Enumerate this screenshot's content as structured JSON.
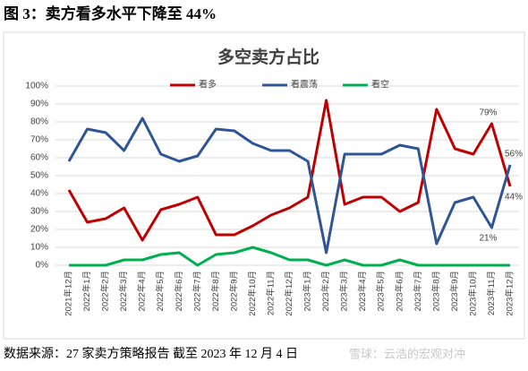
{
  "caption": "图 3：卖方看多水平下降至 44%",
  "source": "数据来源：27 家卖方策略报告 截至 2023 年 12 月 4 日",
  "watermark": "雪球：云浩的宏观对冲",
  "chart_data": {
    "type": "line",
    "title": "多空卖方占比",
    "categories": [
      "2021年12月",
      "2022年1月",
      "2022年2月",
      "2022年3月",
      "2022年4月",
      "2022年5月",
      "2022年6月",
      "2022年7月",
      "2022年8月",
      "2022年9月",
      "2022年10月",
      "2022年11月",
      "2022年12月",
      "2023年1月",
      "2023年2月",
      "2023年3月",
      "2023年4月",
      "2023年5月",
      "2023年6月",
      "2023年7月",
      "2023年8月",
      "2023年9月",
      "2023年10月",
      "2023年11月",
      "2023年12月"
    ],
    "series": [
      {
        "name": "看多",
        "color": "#c00000",
        "values": [
          42,
          24,
          26,
          32,
          14,
          31,
          34,
          38,
          17,
          17,
          22,
          28,
          32,
          38,
          92,
          34,
          38,
          38,
          30,
          35,
          87,
          65,
          62,
          79,
          44
        ],
        "value_labels": [
          null,
          null,
          null,
          null,
          null,
          null,
          null,
          null,
          null,
          null,
          null,
          null,
          null,
          null,
          null,
          null,
          null,
          null,
          null,
          null,
          null,
          null,
          null,
          "79%",
          "44%"
        ]
      },
      {
        "name": "看震荡",
        "color": "#2f5597",
        "values": [
          58,
          76,
          74,
          64,
          82,
          62,
          58,
          61,
          76,
          75,
          68,
          64,
          64,
          58,
          7,
          62,
          62,
          62,
          67,
          65,
          12,
          35,
          38,
          21,
          56
        ],
        "value_labels": [
          null,
          null,
          null,
          null,
          null,
          null,
          null,
          null,
          null,
          null,
          null,
          null,
          null,
          null,
          null,
          null,
          null,
          null,
          null,
          null,
          null,
          null,
          null,
          "21%",
          "56%"
        ]
      },
      {
        "name": "看空",
        "color": "#00b050",
        "values": [
          0,
          0,
          0,
          3,
          3,
          6,
          7,
          0,
          6,
          7,
          10,
          7,
          3,
          3,
          0,
          3,
          0,
          0,
          3,
          0,
          0,
          0,
          0,
          0,
          0
        ]
      }
    ],
    "ylim": [
      0,
      100
    ],
    "yticks": [
      {
        "value": 0,
        "label": "0%"
      },
      {
        "value": 10,
        "label": "10%"
      },
      {
        "value": 20,
        "label": "20%"
      },
      {
        "value": 30,
        "label": "30%"
      },
      {
        "value": 40,
        "label": "40%"
      },
      {
        "value": 50,
        "label": "50%"
      },
      {
        "value": 60,
        "label": "60%"
      },
      {
        "value": 70,
        "label": "70%"
      },
      {
        "value": 80,
        "label": "80%"
      },
      {
        "value": 90,
        "label": "90%"
      },
      {
        "value": 100,
        "label": "100%"
      }
    ],
    "grid": true,
    "legend": "top"
  }
}
